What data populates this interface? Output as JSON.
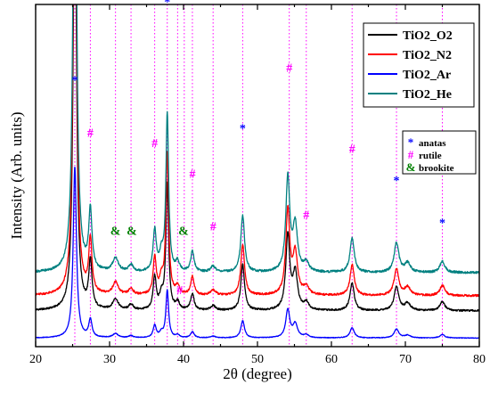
{
  "chart_data": {
    "type": "line",
    "xlabel": "2θ (degree)",
    "ylabel": "Intensity (Arb. units)",
    "xlim": [
      20,
      80
    ],
    "xticks": [
      20,
      30,
      40,
      50,
      60,
      70,
      80
    ],
    "y_axis": "offset stacked, no numeric tick labels",
    "grid": false,
    "legend_position": "top-right",
    "series": [
      {
        "name": "TiO2_O2",
        "color": "#000000",
        "offset": 0.3,
        "scale": 0.8
      },
      {
        "name": "TiO2_N2",
        "color": "#ff0000",
        "offset": 0.43,
        "scale": 0.9
      },
      {
        "name": "TiO2_Ar",
        "color": "#0000ff",
        "offset": 0.07,
        "scale": 0.3
      },
      {
        "name": "TiO2_He",
        "color": "#008080",
        "offset": 0.63,
        "scale": 1.0
      }
    ],
    "reference_lines_2theta": [
      25.3,
      27.4,
      30.8,
      32.9,
      36.1,
      37.8,
      39.2,
      40.1,
      41.2,
      44.0,
      48.0,
      54.3,
      56.6,
      62.8,
      68.8,
      75.0
    ],
    "phase_legend": [
      {
        "symbol": "*",
        "label": "anatas",
        "color": "#0000ff"
      },
      {
        "symbol": "#",
        "label": "rutile",
        "color": "#ff00ff"
      },
      {
        "symbol": "&",
        "label": "brookite",
        "color": "#008000"
      }
    ],
    "peak_annotations": [
      {
        "symbol": "*",
        "x": 25.3,
        "y": 2.3,
        "color": "#0000ff"
      },
      {
        "symbol": "*",
        "x": 37.8,
        "y": 2.99,
        "color": "#0000ff"
      },
      {
        "symbol": "*",
        "x": 48.0,
        "y": 1.88,
        "color": "#0000ff"
      },
      {
        "symbol": "*",
        "x": 68.8,
        "y": 1.42,
        "color": "#0000ff"
      },
      {
        "symbol": "*",
        "x": 75.0,
        "y": 1.05,
        "color": "#0000ff"
      },
      {
        "symbol": "#",
        "x": 27.4,
        "y": 1.84,
        "color": "#ff00ff"
      },
      {
        "symbol": "#",
        "x": 36.1,
        "y": 1.75,
        "color": "#ff00ff"
      },
      {
        "symbol": "#",
        "x": 41.2,
        "y": 1.48,
        "color": "#ff00ff"
      },
      {
        "symbol": "#",
        "x": 44.0,
        "y": 1.02,
        "color": "#ff00ff"
      },
      {
        "symbol": "#",
        "x": 54.3,
        "y": 2.41,
        "color": "#ff00ff"
      },
      {
        "symbol": "#",
        "x": 56.6,
        "y": 1.12,
        "color": "#ff00ff"
      },
      {
        "symbol": "#",
        "x": 62.8,
        "y": 1.7,
        "color": "#ff00ff"
      },
      {
        "symbol": "#",
        "x": 39.5,
        "y": 0.46,
        "color": "#ff00ff"
      },
      {
        "symbol": "&",
        "x": 30.8,
        "y": 0.98,
        "color": "#008000"
      },
      {
        "symbol": "&",
        "x": 33.0,
        "y": 0.98,
        "color": "#008000"
      },
      {
        "symbol": "&",
        "x": 40.0,
        "y": 0.98,
        "color": "#008000"
      }
    ],
    "peaks": [
      {
        "center": 25.3,
        "height": 5.0,
        "width": 0.26
      },
      {
        "center": 27.4,
        "height": 0.52,
        "width": 0.26
      },
      {
        "center": 30.8,
        "height": 0.12,
        "width": 0.45
      },
      {
        "center": 32.9,
        "height": 0.06,
        "width": 0.35
      },
      {
        "center": 36.1,
        "height": 0.36,
        "width": 0.25
      },
      {
        "center": 37.0,
        "height": 0.14,
        "width": 0.3
      },
      {
        "center": 37.8,
        "height": 1.38,
        "width": 0.22
      },
      {
        "center": 39.2,
        "height": 0.08,
        "width": 0.3
      },
      {
        "center": 41.2,
        "height": 0.18,
        "width": 0.28
      },
      {
        "center": 44.0,
        "height": 0.05,
        "width": 0.4
      },
      {
        "center": 48.0,
        "height": 0.5,
        "width": 0.3
      },
      {
        "center": 54.1,
        "height": 0.82,
        "width": 0.32
      },
      {
        "center": 55.1,
        "height": 0.4,
        "width": 0.38
      },
      {
        "center": 56.6,
        "height": 0.08,
        "width": 0.4
      },
      {
        "center": 62.8,
        "height": 0.3,
        "width": 0.34
      },
      {
        "center": 68.8,
        "height": 0.26,
        "width": 0.38
      },
      {
        "center": 70.3,
        "height": 0.08,
        "width": 0.45
      },
      {
        "center": 75.0,
        "height": 0.1,
        "width": 0.4
      }
    ]
  }
}
